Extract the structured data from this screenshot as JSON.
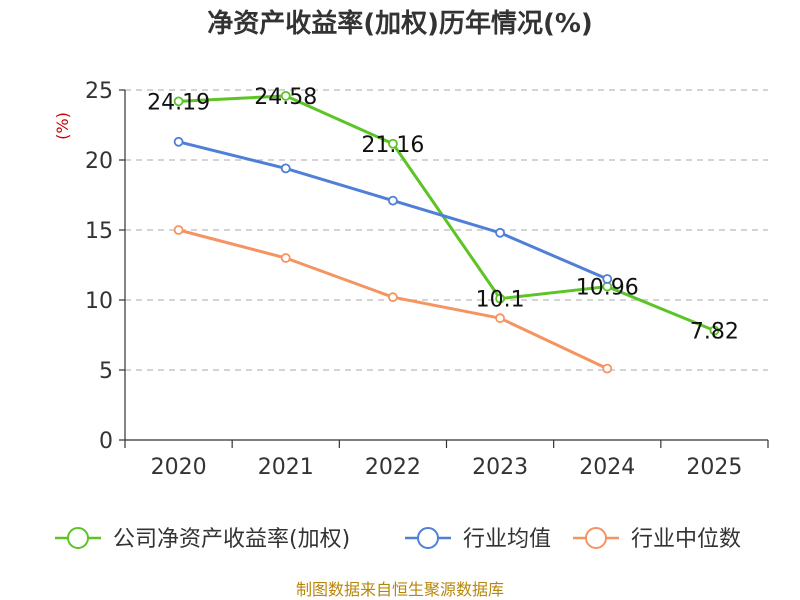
{
  "chart_data": {
    "type": "line",
    "title": "净资产收益率(加权)历年情况(%)",
    "ylabel": "(%)",
    "categories": [
      "2020",
      "2021",
      "2022",
      "2023",
      "2024",
      "2025"
    ],
    "ylim": [
      0,
      25
    ],
    "yticks": [
      0,
      5,
      10,
      15,
      20,
      25
    ],
    "grid": true,
    "legend_position": "bottom",
    "series": [
      {
        "name": "公司净资产收益率(加权)",
        "color": "#5cc425",
        "values": [
          24.19,
          24.58,
          21.16,
          10.1,
          10.96,
          7.82
        ],
        "labels": [
          "24.19",
          "24.58",
          "21.16",
          "10.1",
          "10.96",
          "7.82"
        ]
      },
      {
        "name": "行业均值",
        "color": "#4f7fd6",
        "values": [
          21.3,
          19.4,
          17.1,
          14.8,
          11.5,
          null
        ]
      },
      {
        "name": "行业中位数",
        "color": "#f59461",
        "values": [
          15.0,
          13.0,
          10.2,
          8.7,
          5.1,
          null
        ]
      }
    ],
    "source": "制图数据来自恒生聚源数据库"
  }
}
